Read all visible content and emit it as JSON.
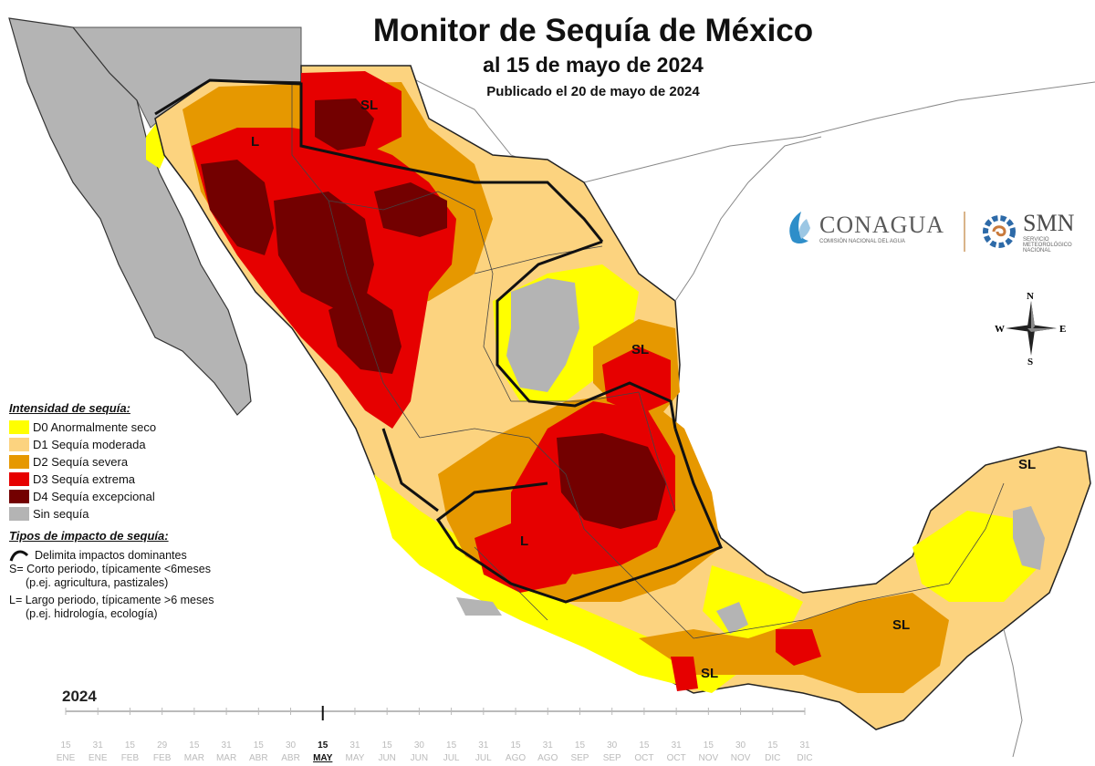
{
  "header": {
    "title": "Monitor de Sequía de México",
    "subtitle": "al 15 de mayo de 2024",
    "published": "Publicado el 20 de mayo de 2024"
  },
  "legend": {
    "intensity_title": "Intensidad de sequía:",
    "intensity_items": [
      {
        "label": "D0 Anormalmente seco",
        "color": "#ffff00"
      },
      {
        "label": "D1 Sequía moderada",
        "color": "#fcd37f"
      },
      {
        "label": "D2 Sequía severa",
        "color": "#e69800"
      },
      {
        "label": "D3 Sequía extrema",
        "color": "#e60000"
      },
      {
        "label": "D4 Sequía excepcional",
        "color": "#730000"
      },
      {
        "label": "Sin sequía",
        "color": "#b4b4b4"
      }
    ],
    "impact_title": "Tipos de impacto de sequía:",
    "impact_line": "Delimita impactos dominantes",
    "short_term": "S= Corto periodo, típicamente <6meses",
    "short_term_eg": "(p.ej. agricultura, pastizales)",
    "long_term": "L= Largo periodo, típicamente >6 meses",
    "long_term_eg": "(p.ej. hidrología, ecología)"
  },
  "map_labels": {
    "sl_north": "SL",
    "l_west": "L",
    "sl_northeast": "SL",
    "l_center": "L",
    "sl_yucatan": "SL",
    "sl_chiapas": "SL",
    "sl_south": "SL"
  },
  "logos": {
    "conagua": "CONAGUA",
    "conagua_sub": "COMISIÓN NACIONAL DEL AGUA",
    "smn": "SMN",
    "smn_sub": "SERVICIO METEOROLÓGICO NACIONAL"
  },
  "compass": {
    "n": "N",
    "s": "S",
    "e": "E",
    "w": "W"
  },
  "timeline": {
    "year": "2024",
    "ticks": [
      {
        "day": "15",
        "month": "ENE"
      },
      {
        "day": "31",
        "month": "ENE"
      },
      {
        "day": "15",
        "month": "FEB"
      },
      {
        "day": "29",
        "month": "FEB"
      },
      {
        "day": "15",
        "month": "MAR"
      },
      {
        "day": "31",
        "month": "MAR"
      },
      {
        "day": "15",
        "month": "ABR"
      },
      {
        "day": "30",
        "month": "ABR"
      },
      {
        "day": "15",
        "month": "MAY"
      },
      {
        "day": "31",
        "month": "MAY"
      },
      {
        "day": "15",
        "month": "JUN"
      },
      {
        "day": "30",
        "month": "JUN"
      },
      {
        "day": "15",
        "month": "JUL"
      },
      {
        "day": "31",
        "month": "JUL"
      },
      {
        "day": "15",
        "month": "AGO"
      },
      {
        "day": "31",
        "month": "AGO"
      },
      {
        "day": "15",
        "month": "SEP"
      },
      {
        "day": "30",
        "month": "SEP"
      },
      {
        "day": "15",
        "month": "OCT"
      },
      {
        "day": "31",
        "month": "OCT"
      },
      {
        "day": "15",
        "month": "NOV"
      },
      {
        "day": "30",
        "month": "NOV"
      },
      {
        "day": "15",
        "month": "DIC"
      },
      {
        "day": "31",
        "month": "DIC"
      }
    ],
    "current_index": 8
  }
}
